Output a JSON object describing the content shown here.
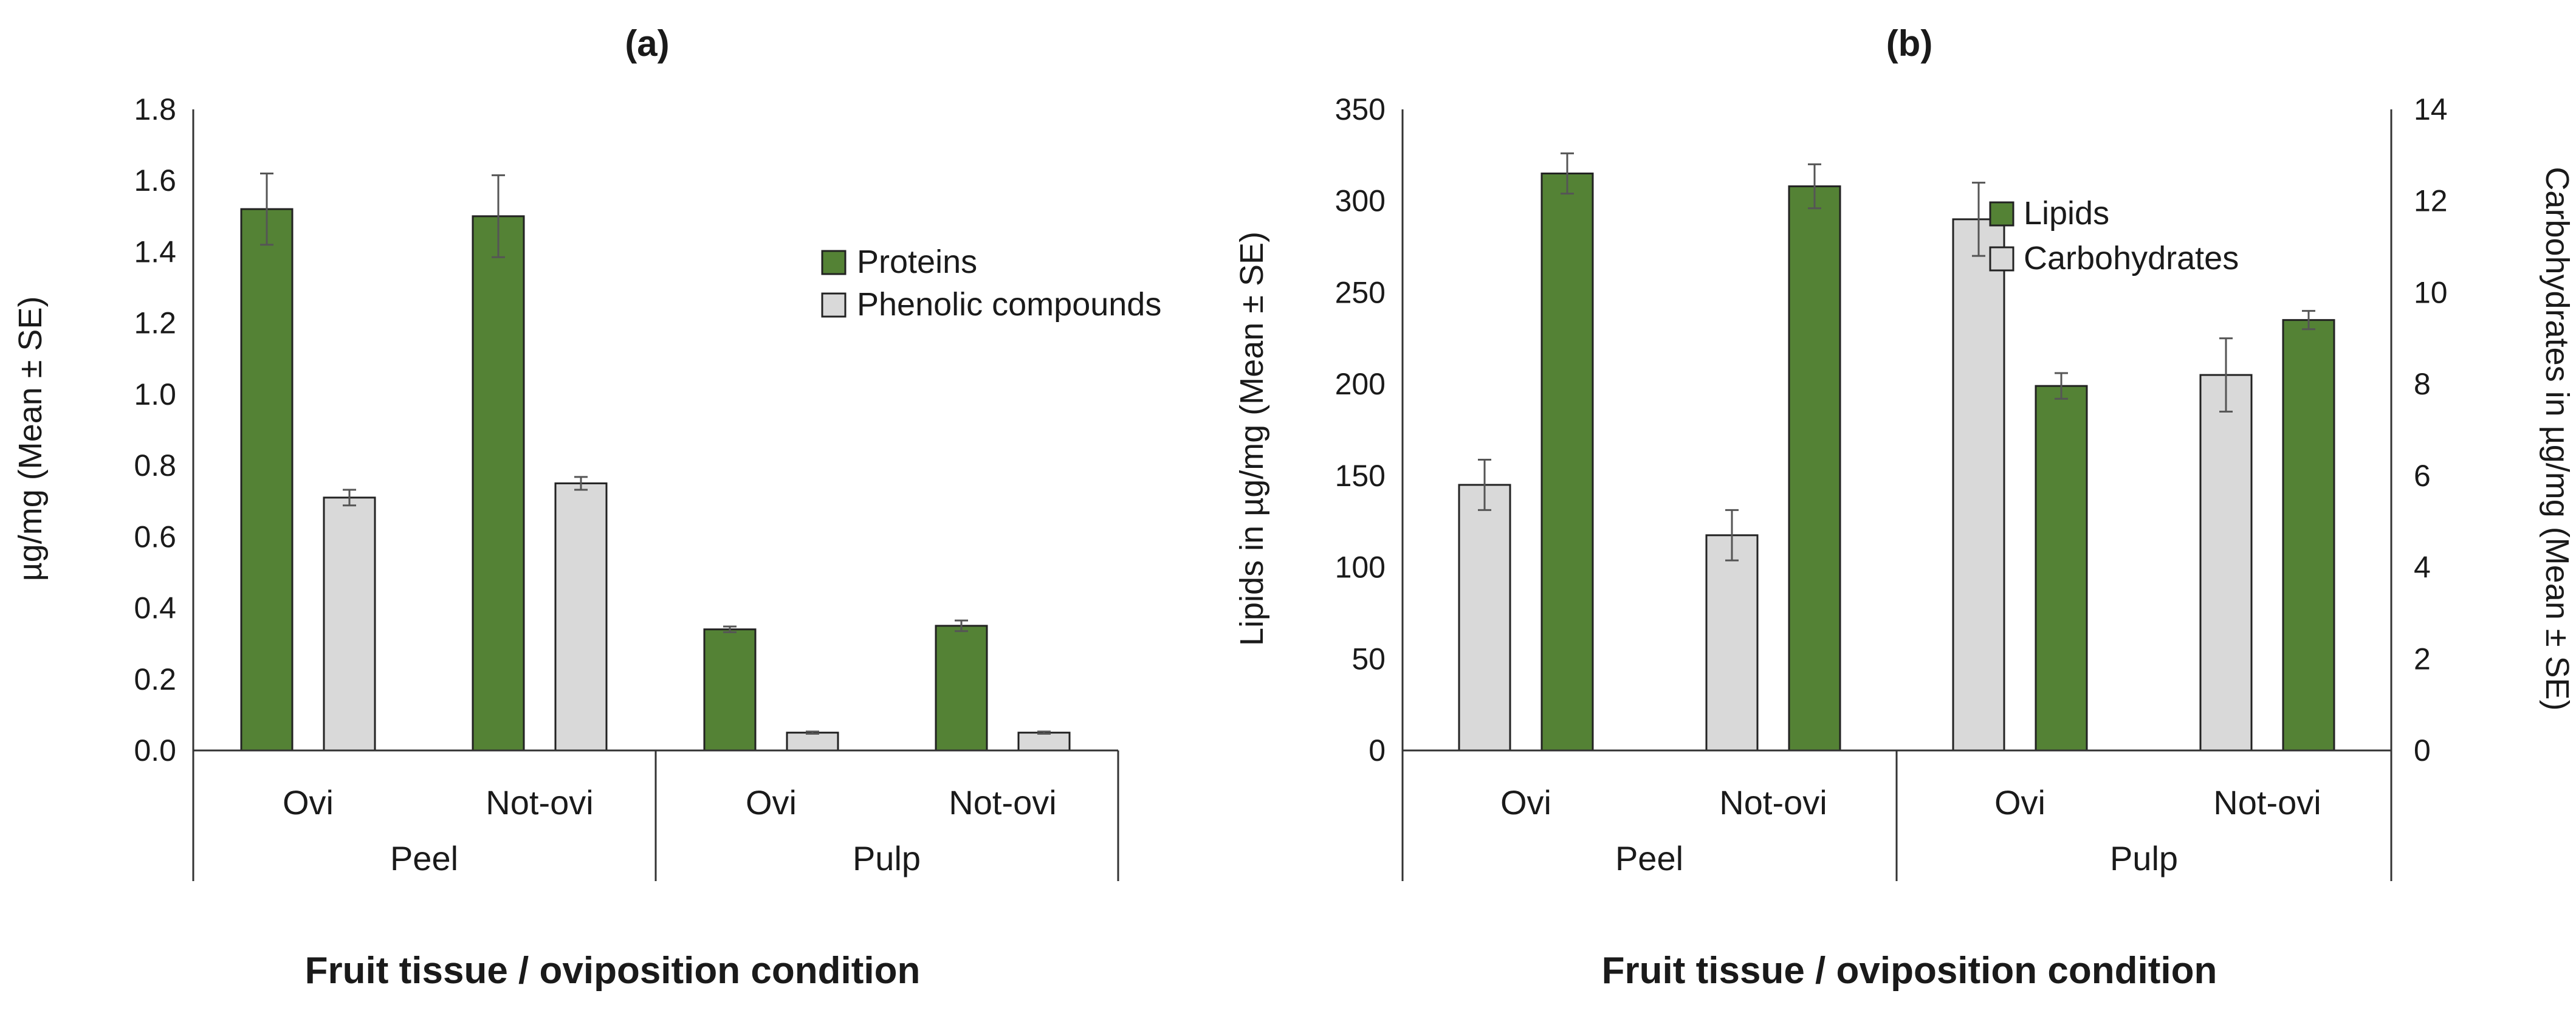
{
  "chart_data": [
    {
      "type": "bar",
      "panel": "(a)",
      "title": "(a)",
      "xlabel": "Fruit tissue / oviposition condition",
      "ylabel": "µg/mg  (Mean ± SE)",
      "ylim": [
        0,
        1.8
      ],
      "yticks": [
        "0.0",
        "0.2",
        "0.4",
        "0.6",
        "0.8",
        "1.0",
        "1.2",
        "1.4",
        "1.6",
        "1.8"
      ],
      "groups": [
        "Peel",
        "Pulp"
      ],
      "categories": [
        "Ovi",
        "Not-ovi",
        "Ovi",
        "Not-ovi"
      ],
      "legend_position": "top-right",
      "series": [
        {
          "name": "Proteins",
          "color": "#548235",
          "values": [
            1.52,
            1.5,
            0.34,
            0.35
          ],
          "errors": [
            0.1,
            0.115,
            0.008,
            0.015
          ]
        },
        {
          "name": "Phenolic compounds",
          "color": "#d9d9d9",
          "values": [
            0.71,
            0.75,
            0.05,
            0.05
          ],
          "errors": [
            0.022,
            0.018,
            0.003,
            0.003
          ]
        }
      ]
    },
    {
      "type": "bar",
      "panel": "(b)",
      "title": "(b)",
      "xlabel": "Fruit tissue / oviposition condition",
      "ylabel": "Lipids in µg/mg  (Mean ± SE)",
      "y2label": "Carbohydrates in µg/mg (Mean ± SE)",
      "ylim": [
        0,
        350
      ],
      "y2lim": [
        0,
        14
      ],
      "yticks": [
        "0",
        "50",
        "100",
        "150",
        "200",
        "250",
        "300",
        "350"
      ],
      "y2ticks": [
        "0",
        "2",
        "4",
        "6",
        "8",
        "10",
        "12",
        "14"
      ],
      "groups": [
        "Peel",
        "Pulp"
      ],
      "categories": [
        "Ovi",
        "Not-ovi",
        "Ovi",
        "Not-ovi"
      ],
      "legend_position": "top-center",
      "series": [
        {
          "name": "Lipids",
          "color": "#548235",
          "axis": "left",
          "values": [
            315,
            308,
            199,
            235
          ],
          "errors": [
            11,
            12,
            7,
            5
          ]
        },
        {
          "name": "Carbohydrates",
          "color": "#d9d9d9",
          "axis": "right",
          "values": [
            5.8,
            4.7,
            11.6,
            8.2
          ],
          "errors": [
            0.55,
            0.55,
            0.8,
            0.8
          ]
        }
      ]
    }
  ]
}
